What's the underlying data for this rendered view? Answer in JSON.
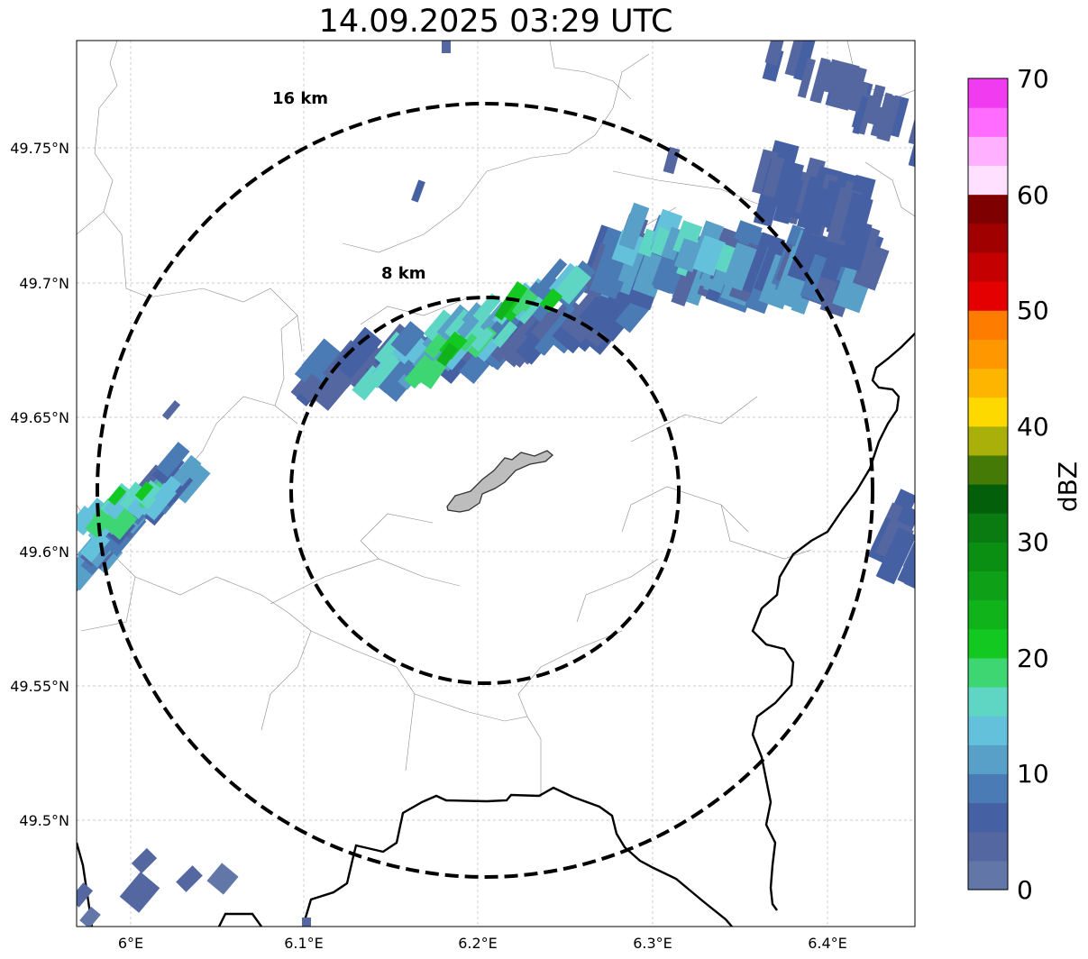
{
  "map": {
    "title": "14.09.2025 03:29 UTC",
    "lat_ticks": [
      "49.75°N",
      "49.7°N",
      "49.65°N",
      "49.6°N",
      "49.55°N",
      "49.5°N"
    ],
    "lon_ticks": [
      "6°E",
      "6.1°E",
      "6.2°E",
      "6.3°E",
      "6.4°E"
    ],
    "range_rings": [
      {
        "label": "16 km",
        "radius_km": 16
      },
      {
        "label": "8 km",
        "radius_km": 8
      }
    ],
    "extent": {
      "lon_min": 5.97,
      "lon_max": 6.45,
      "lat_min": 49.46,
      "lat_max": 49.79
    }
  },
  "colorbar": {
    "label": "dBZ",
    "ticks": [
      "0",
      "10",
      "20",
      "30",
      "40",
      "50",
      "60",
      "70"
    ],
    "colors": [
      "#6276a8",
      "#5467a1",
      "#4561a4",
      "#4b7bb4",
      "#58a0c8",
      "#64c1dc",
      "#5fd6c4",
      "#3dd673",
      "#13c821",
      "#10b41a",
      "#0ea117",
      "#0b8f13",
      "#097b10",
      "#045f0b",
      "#467a06",
      "#aab00a",
      "#fed900",
      "#feb500",
      "#ff9800",
      "#fe7c00",
      "#e50000",
      "#c40000",
      "#a10000",
      "#7f0000",
      "#ffe0fe",
      "#ffb1ff",
      "#ff6cff",
      "#f03bf0"
    ]
  }
}
